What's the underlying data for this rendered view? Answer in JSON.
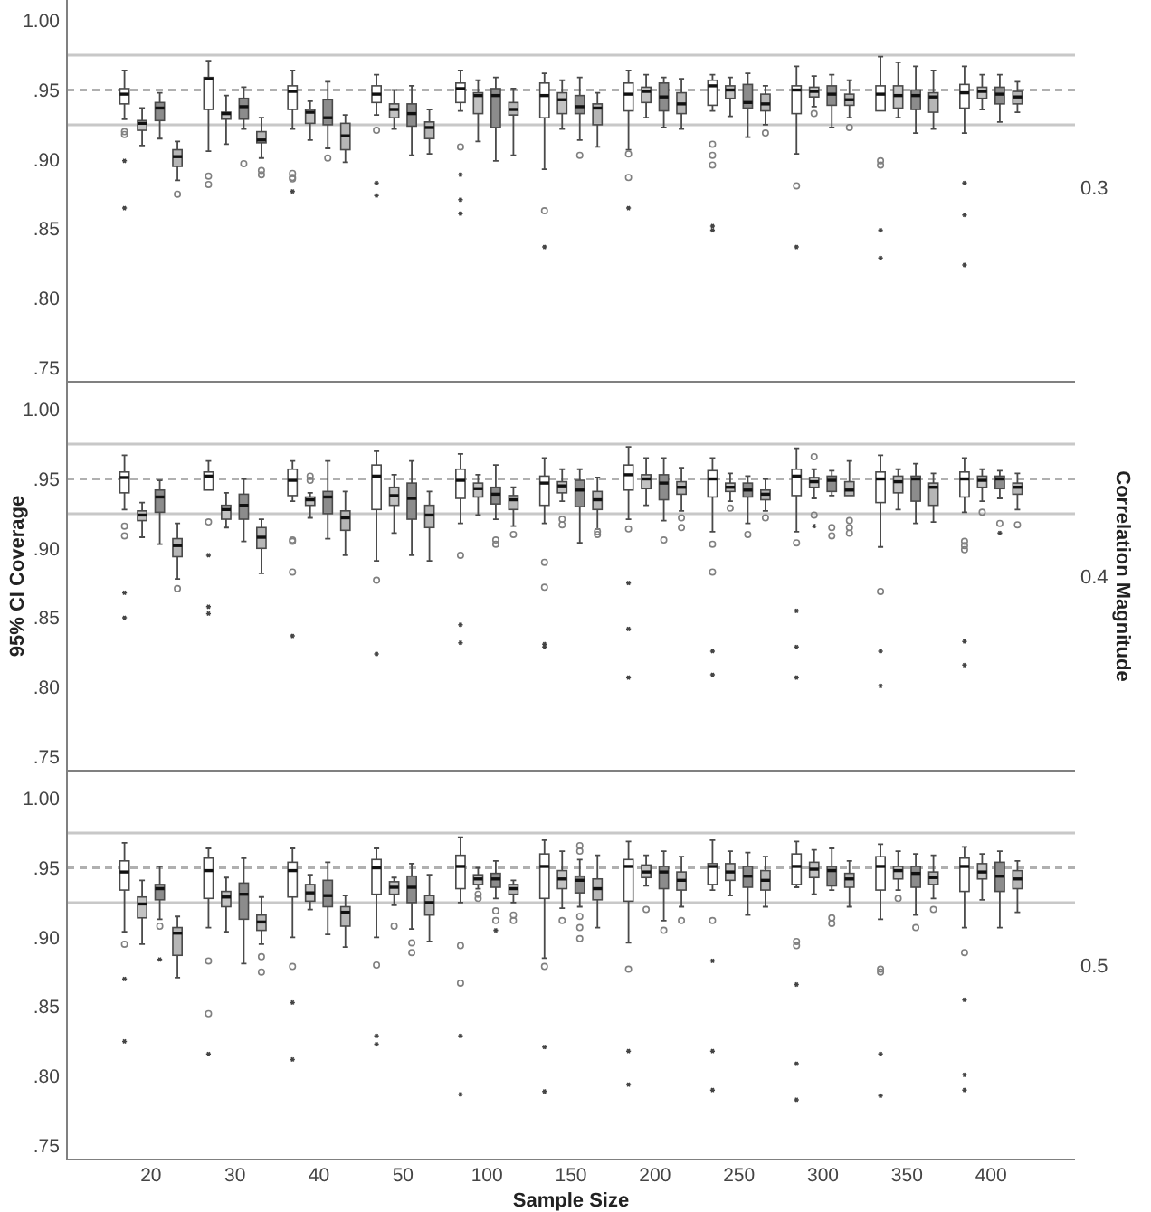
{
  "chart_data": [
    {
      "type": "box",
      "annotations": [
        "0.3"
      ],
      "tick_labels": "y",
      "categories": [
        "20",
        "30",
        "40",
        "50",
        "100",
        "150",
        "200",
        "250",
        "300",
        "350",
        "400"
      ],
      "ylim": [
        0.74,
        1.02
      ],
      "yticks": [
        {
          "value": 0.75,
          "label": ".75"
        },
        {
          "value": 0.8,
          "label": ".80"
        },
        {
          "value": 0.85,
          "label": ".85"
        },
        {
          "value": 0.9,
          "label": ".90"
        },
        {
          "value": 0.95,
          "label": ".95"
        },
        {
          "value": 1.0,
          "label": "1.00"
        }
      ],
      "ref_lines": [
        {
          "axis": "y",
          "value": 0.975,
          "color": "#c8c8c8",
          "line_style": "solid"
        },
        {
          "axis": "y",
          "value": 0.95,
          "color": "#b0b0b0",
          "line_style": "dashed"
        },
        {
          "axis": "y",
          "value": 0.925,
          "color": "#c8c8c8",
          "line_style": "solid"
        }
      ],
      "series": [
        {
          "color": "#ffffff",
          "boxes": [
            {
              "low": 0.929,
              "q1": 0.94,
              "median": 0.947,
              "q3": 0.951,
              "high": 0.964,
              "outliers": [
                0.92,
                0.918,
                0.899,
                0.865
              ]
            },
            {
              "low": 0.906,
              "q1": 0.936,
              "median": 0.958,
              "q3": 0.959,
              "high": 0.971,
              "outliers": [
                0.888,
                0.882
              ]
            },
            {
              "low": 0.922,
              "q1": 0.936,
              "median": 0.949,
              "q3": 0.953,
              "high": 0.964,
              "outliers": [
                0.89,
                0.887,
                0.886,
                0.877
              ]
            },
            {
              "low": 0.932,
              "q1": 0.941,
              "median": 0.947,
              "q3": 0.953,
              "high": 0.961,
              "outliers": [
                0.921,
                0.883,
                0.874
              ]
            },
            {
              "low": 0.935,
              "q1": 0.941,
              "median": 0.951,
              "q3": 0.955,
              "high": 0.964,
              "outliers": [
                0.909,
                0.889,
                0.871,
                0.861
              ]
            },
            {
              "low": 0.893,
              "q1": 0.93,
              "median": 0.946,
              "q3": 0.955,
              "high": 0.962,
              "outliers": [
                0.863,
                0.837
              ]
            },
            {
              "low": 0.907,
              "q1": 0.935,
              "median": 0.947,
              "q3": 0.955,
              "high": 0.964,
              "outliers": [
                0.904,
                0.887,
                0.865
              ]
            },
            {
              "low": 0.935,
              "q1": 0.939,
              "median": 0.953,
              "q3": 0.957,
              "high": 0.961,
              "outliers": [
                0.911,
                0.903,
                0.896,
                0.852,
                0.849
              ]
            },
            {
              "low": 0.904,
              "q1": 0.933,
              "median": 0.95,
              "q3": 0.953,
              "high": 0.967,
              "outliers": [
                0.881,
                0.837
              ]
            },
            {
              "low": 0.935,
              "q1": 0.935,
              "median": 0.947,
              "q3": 0.953,
              "high": 0.974,
              "outliers": [
                0.899,
                0.896,
                0.849,
                0.829
              ]
            },
            {
              "low": 0.919,
              "q1": 0.937,
              "median": 0.948,
              "q3": 0.954,
              "high": 0.967,
              "outliers": [
                0.883,
                0.86,
                0.824
              ]
            }
          ]
        },
        {
          "color": "#c2c2c2",
          "boxes": [
            {
              "low": 0.91,
              "q1": 0.921,
              "median": 0.926,
              "q3": 0.928,
              "high": 0.937
            },
            {
              "low": 0.911,
              "q1": 0.929,
              "median": 0.933,
              "q3": 0.934,
              "high": 0.946
            },
            {
              "low": 0.914,
              "q1": 0.926,
              "median": 0.934,
              "q3": 0.936,
              "high": 0.942
            },
            {
              "low": 0.922,
              "q1": 0.93,
              "median": 0.936,
              "q3": 0.94,
              "high": 0.95
            },
            {
              "low": 0.913,
              "q1": 0.933,
              "median": 0.946,
              "q3": 0.948,
              "high": 0.957
            },
            {
              "low": 0.922,
              "q1": 0.933,
              "median": 0.943,
              "q3": 0.948,
              "high": 0.957
            },
            {
              "low": 0.93,
              "q1": 0.941,
              "median": 0.949,
              "q3": 0.952,
              "high": 0.961
            },
            {
              "low": 0.931,
              "q1": 0.944,
              "median": 0.95,
              "q3": 0.953,
              "high": 0.959
            },
            {
              "low": 0.938,
              "q1": 0.945,
              "median": 0.949,
              "q3": 0.952,
              "high": 0.96,
              "outliers": [
                0.933
              ]
            },
            {
              "low": 0.93,
              "q1": 0.937,
              "median": 0.946,
              "q3": 0.953,
              "high": 0.97
            },
            {
              "low": 0.936,
              "q1": 0.944,
              "median": 0.949,
              "q3": 0.952,
              "high": 0.961
            }
          ]
        },
        {
          "color": "#8c8c8c",
          "boxes": [
            {
              "low": 0.915,
              "q1": 0.928,
              "median": 0.937,
              "q3": 0.941,
              "high": 0.948
            },
            {
              "low": 0.922,
              "q1": 0.929,
              "median": 0.938,
              "q3": 0.944,
              "high": 0.952,
              "outliers": [
                0.897
              ]
            },
            {
              "low": 0.908,
              "q1": 0.925,
              "median": 0.93,
              "q3": 0.943,
              "high": 0.956,
              "outliers": [
                0.901
              ]
            },
            {
              "low": 0.903,
              "q1": 0.924,
              "median": 0.933,
              "q3": 0.94,
              "high": 0.953
            },
            {
              "low": 0.899,
              "q1": 0.923,
              "median": 0.946,
              "q3": 0.951,
              "high": 0.959
            },
            {
              "low": 0.914,
              "q1": 0.933,
              "median": 0.938,
              "q3": 0.946,
              "high": 0.959,
              "outliers": [
                0.903
              ]
            },
            {
              "low": 0.923,
              "q1": 0.935,
              "median": 0.945,
              "q3": 0.955,
              "high": 0.959
            },
            {
              "low": 0.916,
              "q1": 0.937,
              "median": 0.941,
              "q3": 0.954,
              "high": 0.962
            },
            {
              "low": 0.923,
              "q1": 0.939,
              "median": 0.947,
              "q3": 0.953,
              "high": 0.961
            },
            {
              "low": 0.919,
              "q1": 0.936,
              "median": 0.946,
              "q3": 0.95,
              "high": 0.967
            },
            {
              "low": 0.927,
              "q1": 0.94,
              "median": 0.947,
              "q3": 0.952,
              "high": 0.961
            }
          ]
        },
        {
          "color": "#b6b6b6",
          "boxes": [
            {
              "low": 0.885,
              "q1": 0.895,
              "median": 0.902,
              "q3": 0.907,
              "high": 0.913,
              "outliers": [
                0.875
              ]
            },
            {
              "low": 0.901,
              "q1": 0.912,
              "median": 0.914,
              "q3": 0.92,
              "high": 0.93,
              "outliers": [
                0.892,
                0.889
              ]
            },
            {
              "low": 0.898,
              "q1": 0.907,
              "median": 0.917,
              "q3": 0.926,
              "high": 0.932
            },
            {
              "low": 0.904,
              "q1": 0.915,
              "median": 0.923,
              "q3": 0.927,
              "high": 0.936
            },
            {
              "low": 0.903,
              "q1": 0.932,
              "median": 0.936,
              "q3": 0.941,
              "high": 0.951
            },
            {
              "low": 0.909,
              "q1": 0.925,
              "median": 0.937,
              "q3": 0.94,
              "high": 0.948
            },
            {
              "low": 0.922,
              "q1": 0.933,
              "median": 0.94,
              "q3": 0.948,
              "high": 0.958
            },
            {
              "low": 0.925,
              "q1": 0.935,
              "median": 0.94,
              "q3": 0.947,
              "high": 0.953,
              "outliers": [
                0.919
              ]
            },
            {
              "low": 0.93,
              "q1": 0.939,
              "median": 0.943,
              "q3": 0.947,
              "high": 0.957,
              "outliers": [
                0.923
              ]
            },
            {
              "low": 0.922,
              "q1": 0.934,
              "median": 0.945,
              "q3": 0.948,
              "high": 0.964
            },
            {
              "low": 0.934,
              "q1": 0.94,
              "median": 0.945,
              "q3": 0.949,
              "high": 0.956
            }
          ]
        }
      ]
    },
    {
      "type": "box",
      "annotations": [
        "0.4"
      ],
      "ylabel": "95% CI Coverage",
      "y2label": "Correlation Magnitude",
      "tick_labels": "y",
      "categories": [
        "20",
        "30",
        "40",
        "50",
        "100",
        "150",
        "200",
        "250",
        "300",
        "350",
        "400"
      ],
      "ylim": [
        0.74,
        1.02
      ],
      "yticks": [
        {
          "value": 0.75,
          "label": ".75"
        },
        {
          "value": 0.8,
          "label": ".80"
        },
        {
          "value": 0.85,
          "label": ".85"
        },
        {
          "value": 0.9,
          "label": ".90"
        },
        {
          "value": 0.95,
          "label": ".95"
        },
        {
          "value": 1.0,
          "label": "1.00"
        }
      ],
      "ref_lines": [
        {
          "axis": "y",
          "value": 0.975,
          "color": "#c8c8c8",
          "line_style": "solid"
        },
        {
          "axis": "y",
          "value": 0.95,
          "color": "#b0b0b0",
          "line_style": "dashed"
        },
        {
          "axis": "y",
          "value": 0.925,
          "color": "#c8c8c8",
          "line_style": "solid"
        }
      ],
      "series": [
        {
          "color": "#ffffff",
          "boxes": [
            {
              "low": 0.928,
              "q1": 0.94,
              "median": 0.951,
              "q3": 0.955,
              "high": 0.967,
              "outliers": [
                0.916,
                0.909,
                0.868,
                0.85
              ]
            },
            {
              "low": 0.942,
              "q1": 0.942,
              "median": 0.952,
              "q3": 0.955,
              "high": 0.963,
              "outliers": [
                0.919,
                0.895,
                0.858,
                0.853
              ]
            },
            {
              "low": 0.934,
              "q1": 0.938,
              "median": 0.949,
              "q3": 0.957,
              "high": 0.963,
              "outliers": [
                0.906,
                0.905,
                0.883,
                0.837
              ]
            },
            {
              "low": 0.891,
              "q1": 0.928,
              "median": 0.952,
              "q3": 0.96,
              "high": 0.97,
              "outliers": [
                0.877,
                0.824
              ]
            },
            {
              "low": 0.918,
              "q1": 0.936,
              "median": 0.949,
              "q3": 0.957,
              "high": 0.968,
              "outliers": [
                0.895,
                0.845,
                0.832
              ]
            },
            {
              "low": 0.918,
              "q1": 0.931,
              "median": 0.947,
              "q3": 0.952,
              "high": 0.965,
              "outliers": [
                0.89,
                0.872,
                0.831,
                0.829
              ]
            },
            {
              "low": 0.921,
              "q1": 0.942,
              "median": 0.953,
              "q3": 0.96,
              "high": 0.973,
              "outliers": [
                0.914,
                0.875,
                0.842,
                0.807
              ]
            },
            {
              "low": 0.912,
              "q1": 0.937,
              "median": 0.95,
              "q3": 0.956,
              "high": 0.965,
              "outliers": [
                0.903,
                0.883,
                0.826,
                0.809
              ]
            },
            {
              "low": 0.912,
              "q1": 0.938,
              "median": 0.952,
              "q3": 0.957,
              "high": 0.972,
              "outliers": [
                0.904,
                0.855,
                0.829,
                0.807
              ]
            },
            {
              "low": 0.901,
              "q1": 0.933,
              "median": 0.95,
              "q3": 0.955,
              "high": 0.967,
              "outliers": [
                0.869,
                0.826,
                0.801
              ]
            },
            {
              "low": 0.926,
              "q1": 0.937,
              "median": 0.95,
              "q3": 0.955,
              "high": 0.965,
              "outliers": [
                0.905,
                0.902,
                0.899,
                0.833,
                0.816
              ]
            }
          ]
        },
        {
          "color": "#c2c2c2",
          "boxes": [
            {
              "low": 0.908,
              "q1": 0.92,
              "median": 0.924,
              "q3": 0.927,
              "high": 0.933
            },
            {
              "low": 0.915,
              "q1": 0.921,
              "median": 0.928,
              "q3": 0.931,
              "high": 0.94
            },
            {
              "low": 0.922,
              "q1": 0.931,
              "median": 0.935,
              "q3": 0.937,
              "high": 0.94,
              "outliers": [
                0.952,
                0.949
              ]
            },
            {
              "low": 0.911,
              "q1": 0.931,
              "median": 0.938,
              "q3": 0.944,
              "high": 0.953
            },
            {
              "low": 0.924,
              "q1": 0.937,
              "median": 0.943,
              "q3": 0.947,
              "high": 0.953
            },
            {
              "low": 0.934,
              "q1": 0.94,
              "median": 0.945,
              "q3": 0.948,
              "high": 0.957,
              "outliers": [
                0.921,
                0.917
              ]
            },
            {
              "low": 0.931,
              "q1": 0.943,
              "median": 0.95,
              "q3": 0.953,
              "high": 0.965
            },
            {
              "low": 0.934,
              "q1": 0.941,
              "median": 0.944,
              "q3": 0.947,
              "high": 0.954,
              "outliers": [
                0.929
              ]
            },
            {
              "low": 0.936,
              "q1": 0.944,
              "median": 0.948,
              "q3": 0.951,
              "high": 0.957,
              "outliers": [
                0.966,
                0.924,
                0.916
              ]
            },
            {
              "low": 0.928,
              "q1": 0.94,
              "median": 0.948,
              "q3": 0.952,
              "high": 0.957
            },
            {
              "low": 0.934,
              "q1": 0.944,
              "median": 0.949,
              "q3": 0.952,
              "high": 0.957,
              "outliers": [
                0.926
              ]
            }
          ]
        },
        {
          "color": "#8c8c8c",
          "boxes": [
            {
              "low": 0.903,
              "q1": 0.926,
              "median": 0.937,
              "q3": 0.942,
              "high": 0.949
            },
            {
              "low": 0.905,
              "q1": 0.921,
              "median": 0.931,
              "q3": 0.939,
              "high": 0.95
            },
            {
              "low": 0.907,
              "q1": 0.925,
              "median": 0.937,
              "q3": 0.941,
              "high": 0.963
            },
            {
              "low": 0.895,
              "q1": 0.921,
              "median": 0.936,
              "q3": 0.947,
              "high": 0.963
            },
            {
              "low": 0.921,
              "q1": 0.932,
              "median": 0.939,
              "q3": 0.944,
              "high": 0.96,
              "outliers": [
                0.906,
                0.903
              ]
            },
            {
              "low": 0.904,
              "q1": 0.93,
              "median": 0.942,
              "q3": 0.949,
              "high": 0.957
            },
            {
              "low": 0.92,
              "q1": 0.935,
              "median": 0.947,
              "q3": 0.953,
              "high": 0.965,
              "outliers": [
                0.906
              ]
            },
            {
              "low": 0.918,
              "q1": 0.937,
              "median": 0.942,
              "q3": 0.947,
              "high": 0.952,
              "outliers": [
                0.91
              ]
            },
            {
              "low": 0.938,
              "q1": 0.941,
              "median": 0.949,
              "q3": 0.952,
              "high": 0.956,
              "outliers": [
                0.915,
                0.909
              ]
            },
            {
              "low": 0.918,
              "q1": 0.934,
              "median": 0.95,
              "q3": 0.952,
              "high": 0.961
            },
            {
              "low": 0.936,
              "q1": 0.943,
              "median": 0.95,
              "q3": 0.952,
              "high": 0.956,
              "outliers": [
                0.918,
                0.911
              ]
            }
          ]
        },
        {
          "color": "#b6b6b6",
          "boxes": [
            {
              "low": 0.878,
              "q1": 0.894,
              "median": 0.902,
              "q3": 0.907,
              "high": 0.918,
              "outliers": [
                0.871
              ]
            },
            {
              "low": 0.882,
              "q1": 0.9,
              "median": 0.908,
              "q3": 0.915,
              "high": 0.921
            },
            {
              "low": 0.895,
              "q1": 0.913,
              "median": 0.922,
              "q3": 0.927,
              "high": 0.941
            },
            {
              "low": 0.891,
              "q1": 0.915,
              "median": 0.924,
              "q3": 0.931,
              "high": 0.941
            },
            {
              "low": 0.916,
              "q1": 0.928,
              "median": 0.935,
              "q3": 0.938,
              "high": 0.944,
              "outliers": [
                0.91
              ]
            },
            {
              "low": 0.914,
              "q1": 0.928,
              "median": 0.935,
              "q3": 0.941,
              "high": 0.951,
              "outliers": [
                0.912,
                0.91
              ]
            },
            {
              "low": 0.927,
              "q1": 0.939,
              "median": 0.944,
              "q3": 0.948,
              "high": 0.958,
              "outliers": [
                0.922,
                0.915
              ]
            },
            {
              "low": 0.927,
              "q1": 0.935,
              "median": 0.939,
              "q3": 0.942,
              "high": 0.95,
              "outliers": [
                0.922
              ]
            },
            {
              "low": 0.938,
              "q1": 0.938,
              "median": 0.942,
              "q3": 0.948,
              "high": 0.963,
              "outliers": [
                0.92,
                0.915,
                0.911
              ]
            },
            {
              "low": 0.919,
              "q1": 0.931,
              "median": 0.944,
              "q3": 0.947,
              "high": 0.954
            },
            {
              "low": 0.928,
              "q1": 0.939,
              "median": 0.944,
              "q3": 0.947,
              "high": 0.954,
              "outliers": [
                0.917
              ]
            }
          ]
        }
      ]
    },
    {
      "type": "box",
      "annotations": [
        "0.5"
      ],
      "xlabel": "Sample Size",
      "categories": [
        "20",
        "30",
        "40",
        "50",
        "100",
        "150",
        "200",
        "250",
        "300",
        "350",
        "400"
      ],
      "ylim": [
        0.74,
        1.02
      ],
      "yticks": [
        {
          "value": 0.75,
          "label": ".75"
        },
        {
          "value": 0.8,
          "label": ".80"
        },
        {
          "value": 0.85,
          "label": ".85"
        },
        {
          "value": 0.9,
          "label": ".90"
        },
        {
          "value": 0.95,
          "label": ".95"
        },
        {
          "value": 1.0,
          "label": "1.00"
        }
      ],
      "ref_lines": [
        {
          "axis": "y",
          "value": 0.975,
          "color": "#c8c8c8",
          "line_style": "solid"
        },
        {
          "axis": "y",
          "value": 0.95,
          "color": "#b0b0b0",
          "line_style": "dashed"
        },
        {
          "axis": "y",
          "value": 0.925,
          "color": "#c8c8c8",
          "line_style": "solid"
        }
      ],
      "series": [
        {
          "color": "#ffffff",
          "boxes": [
            {
              "low": 0.904,
              "q1": 0.934,
              "median": 0.947,
              "q3": 0.955,
              "high": 0.968,
              "outliers": [
                0.895,
                0.87,
                0.825
              ]
            },
            {
              "low": 0.907,
              "q1": 0.928,
              "median": 0.948,
              "q3": 0.957,
              "high": 0.964,
              "outliers": [
                0.883,
                0.845,
                0.816
              ]
            },
            {
              "low": 0.9,
              "q1": 0.929,
              "median": 0.948,
              "q3": 0.954,
              "high": 0.964,
              "outliers": [
                0.879,
                0.853,
                0.812
              ]
            },
            {
              "low": 0.9,
              "q1": 0.931,
              "median": 0.95,
              "q3": 0.956,
              "high": 0.964,
              "outliers": [
                0.88,
                0.829,
                0.823
              ]
            },
            {
              "low": 0.925,
              "q1": 0.935,
              "median": 0.951,
              "q3": 0.959,
              "high": 0.972,
              "outliers": [
                0.894,
                0.867,
                0.829,
                0.787
              ]
            },
            {
              "low": 0.885,
              "q1": 0.928,
              "median": 0.951,
              "q3": 0.96,
              "high": 0.97,
              "outliers": [
                0.879,
                0.821,
                0.789
              ]
            },
            {
              "low": 0.896,
              "q1": 0.926,
              "median": 0.951,
              "q3": 0.956,
              "high": 0.969,
              "outliers": [
                0.877,
                0.818,
                0.794
              ]
            },
            {
              "low": 0.934,
              "q1": 0.938,
              "median": 0.951,
              "q3": 0.953,
              "high": 0.97,
              "outliers": [
                0.912,
                0.883,
                0.818,
                0.79
              ]
            },
            {
              "low": 0.936,
              "q1": 0.938,
              "median": 0.951,
              "q3": 0.96,
              "high": 0.969,
              "outliers": [
                0.897,
                0.894,
                0.866,
                0.809,
                0.783
              ]
            },
            {
              "low": 0.913,
              "q1": 0.934,
              "median": 0.951,
              "q3": 0.958,
              "high": 0.967,
              "outliers": [
                0.877,
                0.875,
                0.816,
                0.786
              ]
            },
            {
              "low": 0.907,
              "q1": 0.933,
              "median": 0.951,
              "q3": 0.957,
              "high": 0.965,
              "outliers": [
                0.889,
                0.855,
                0.801,
                0.79
              ]
            }
          ]
        },
        {
          "color": "#c2c2c2",
          "boxes": [
            {
              "low": 0.895,
              "q1": 0.914,
              "median": 0.924,
              "q3": 0.929,
              "high": 0.941
            },
            {
              "low": 0.904,
              "q1": 0.922,
              "median": 0.929,
              "q3": 0.933,
              "high": 0.943
            },
            {
              "low": 0.92,
              "q1": 0.926,
              "median": 0.932,
              "q3": 0.938,
              "high": 0.945
            },
            {
              "low": 0.923,
              "q1": 0.931,
              "median": 0.936,
              "q3": 0.94,
              "high": 0.943,
              "outliers": [
                0.908
              ]
            },
            {
              "low": 0.935,
              "q1": 0.938,
              "median": 0.942,
              "q3": 0.945,
              "high": 0.95,
              "outliers": [
                0.931,
                0.928
              ]
            },
            {
              "low": 0.921,
              "q1": 0.935,
              "median": 0.942,
              "q3": 0.948,
              "high": 0.962,
              "outliers": [
                0.912
              ]
            },
            {
              "low": 0.937,
              "q1": 0.943,
              "median": 0.947,
              "q3": 0.952,
              "high": 0.959,
              "outliers": [
                0.92
              ]
            },
            {
              "low": 0.93,
              "q1": 0.941,
              "median": 0.947,
              "q3": 0.953,
              "high": 0.962
            },
            {
              "low": 0.931,
              "q1": 0.943,
              "median": 0.949,
              "q3": 0.954,
              "high": 0.963
            },
            {
              "low": 0.934,
              "q1": 0.942,
              "median": 0.948,
              "q3": 0.951,
              "high": 0.962,
              "outliers": [
                0.928
              ]
            },
            {
              "low": 0.927,
              "q1": 0.942,
              "median": 0.947,
              "q3": 0.953,
              "high": 0.96
            }
          ]
        },
        {
          "color": "#8c8c8c",
          "boxes": [
            {
              "low": 0.913,
              "q1": 0.927,
              "median": 0.935,
              "q3": 0.938,
              "high": 0.951,
              "outliers": [
                0.908,
                0.884
              ]
            },
            {
              "low": 0.881,
              "q1": 0.913,
              "median": 0.931,
              "q3": 0.939,
              "high": 0.957
            },
            {
              "low": 0.902,
              "q1": 0.922,
              "median": 0.93,
              "q3": 0.941,
              "high": 0.954
            },
            {
              "low": 0.906,
              "q1": 0.925,
              "median": 0.936,
              "q3": 0.944,
              "high": 0.953,
              "outliers": [
                0.896,
                0.889
              ]
            },
            {
              "low": 0.928,
              "q1": 0.936,
              "median": 0.942,
              "q3": 0.946,
              "high": 0.955,
              "outliers": [
                0.919,
                0.912,
                0.905
              ]
            },
            {
              "low": 0.922,
              "q1": 0.932,
              "median": 0.941,
              "q3": 0.944,
              "high": 0.956,
              "outliers": [
                0.966,
                0.962,
                0.915,
                0.907,
                0.899
              ]
            },
            {
              "low": 0.912,
              "q1": 0.935,
              "median": 0.947,
              "q3": 0.951,
              "high": 0.962,
              "outliers": [
                0.905
              ]
            },
            {
              "low": 0.916,
              "q1": 0.936,
              "median": 0.944,
              "q3": 0.951,
              "high": 0.961
            },
            {
              "low": 0.934,
              "q1": 0.937,
              "median": 0.948,
              "q3": 0.951,
              "high": 0.964,
              "outliers": [
                0.914,
                0.91
              ]
            },
            {
              "low": 0.916,
              "q1": 0.936,
              "median": 0.946,
              "q3": 0.951,
              "high": 0.96,
              "outliers": [
                0.907
              ]
            },
            {
              "low": 0.907,
              "q1": 0.933,
              "median": 0.944,
              "q3": 0.954,
              "high": 0.962
            }
          ]
        },
        {
          "color": "#b6b6b6",
          "boxes": [
            {
              "low": 0.871,
              "q1": 0.887,
              "median": 0.903,
              "q3": 0.907,
              "high": 0.915
            },
            {
              "low": 0.895,
              "q1": 0.905,
              "median": 0.911,
              "q3": 0.916,
              "high": 0.929,
              "outliers": [
                0.886,
                0.875
              ]
            },
            {
              "low": 0.893,
              "q1": 0.908,
              "median": 0.918,
              "q3": 0.922,
              "high": 0.93
            },
            {
              "low": 0.897,
              "q1": 0.916,
              "median": 0.925,
              "q3": 0.93,
              "high": 0.945
            },
            {
              "low": 0.925,
              "q1": 0.931,
              "median": 0.935,
              "q3": 0.938,
              "high": 0.941,
              "outliers": [
                0.916,
                0.912
              ]
            },
            {
              "low": 0.907,
              "q1": 0.927,
              "median": 0.935,
              "q3": 0.942,
              "high": 0.959
            },
            {
              "low": 0.922,
              "q1": 0.934,
              "median": 0.941,
              "q3": 0.947,
              "high": 0.958,
              "outliers": [
                0.912
              ]
            },
            {
              "low": 0.922,
              "q1": 0.934,
              "median": 0.941,
              "q3": 0.948,
              "high": 0.958
            },
            {
              "low": 0.922,
              "q1": 0.936,
              "median": 0.942,
              "q3": 0.946,
              "high": 0.955
            },
            {
              "low": 0.928,
              "q1": 0.938,
              "median": 0.943,
              "q3": 0.947,
              "high": 0.959,
              "outliers": [
                0.92
              ]
            },
            {
              "low": 0.918,
              "q1": 0.935,
              "median": 0.942,
              "q3": 0.948,
              "high": 0.955
            }
          ]
        }
      ]
    }
  ]
}
